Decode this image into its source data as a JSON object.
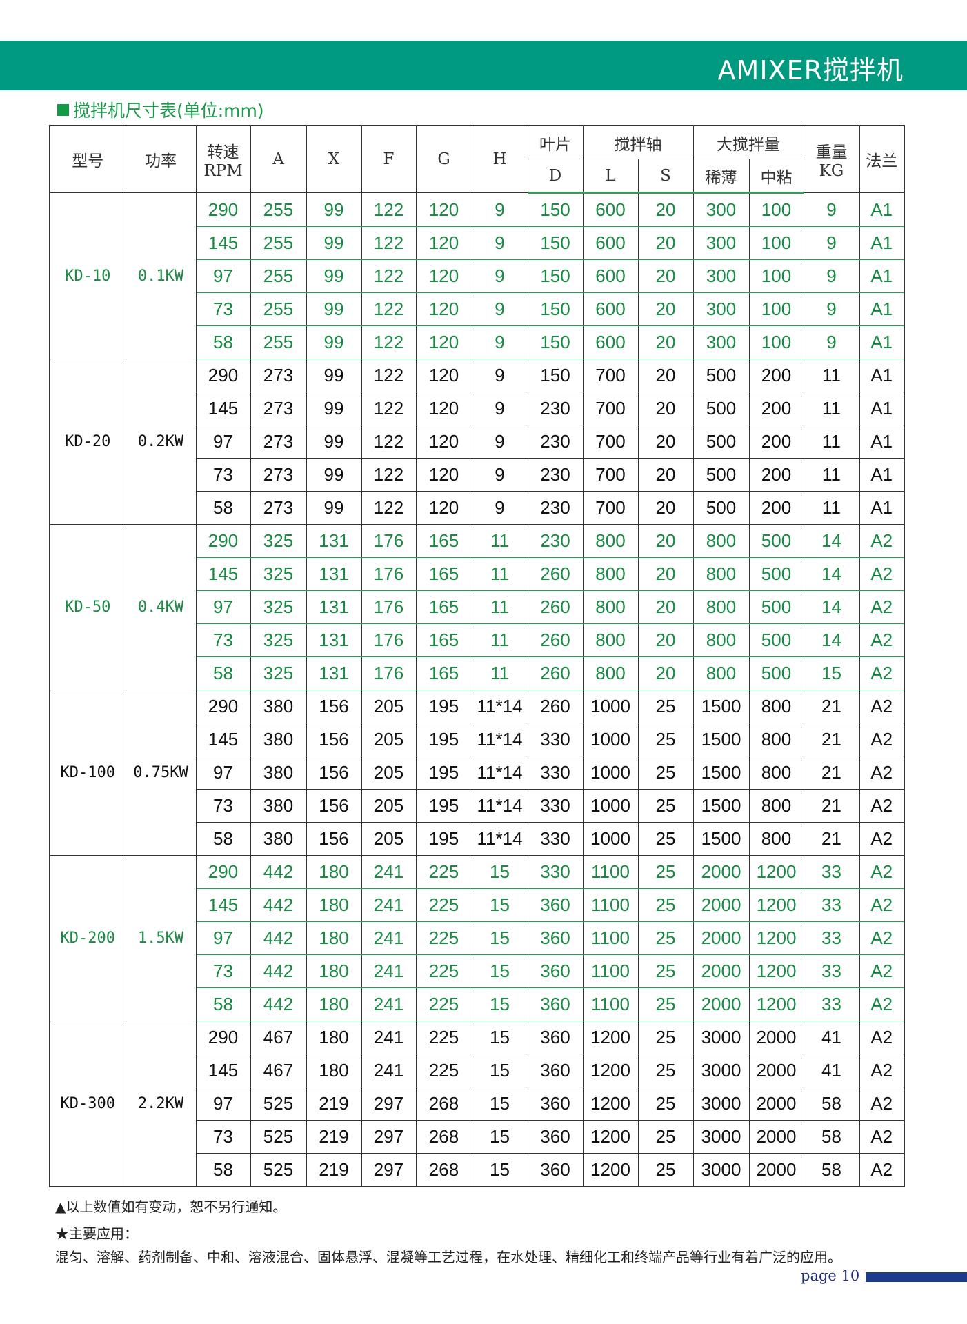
{
  "header": {
    "title": "AMIXER搅拌机",
    "band_color": "#009a80"
  },
  "subtitle": "搅拌机尺寸表(单位:mm)",
  "table": {
    "headers": {
      "model": "型号",
      "power": "功率",
      "speed": "转速",
      "speed_unit": "RPM",
      "A": "A",
      "X": "X",
      "F": "F",
      "G": "G",
      "H": "H",
      "blade": "叶片",
      "shaft": "搅拌轴",
      "capacity": "大搅拌量",
      "weight": "重量",
      "weight_unit": "KG",
      "flange": "法兰",
      "D": "D",
      "L": "L",
      "S": "S",
      "thin": "稀薄",
      "medium": "中粘"
    },
    "accent_color": "#1a8a45",
    "groups": [
      {
        "model": "KD-10",
        "power": "0.1KW",
        "green": true,
        "rows": [
          [
            "290",
            "255",
            "99",
            "122",
            "120",
            "9",
            "150",
            "600",
            "20",
            "300",
            "100",
            "9",
            "A1"
          ],
          [
            "145",
            "255",
            "99",
            "122",
            "120",
            "9",
            "150",
            "600",
            "20",
            "300",
            "100",
            "9",
            "A1"
          ],
          [
            "97",
            "255",
            "99",
            "122",
            "120",
            "9",
            "150",
            "600",
            "20",
            "300",
            "100",
            "9",
            "A1"
          ],
          [
            "73",
            "255",
            "99",
            "122",
            "120",
            "9",
            "150",
            "600",
            "20",
            "300",
            "100",
            "9",
            "A1"
          ],
          [
            "58",
            "255",
            "99",
            "122",
            "120",
            "9",
            "150",
            "600",
            "20",
            "300",
            "100",
            "9",
            "A1"
          ]
        ]
      },
      {
        "model": "KD-20",
        "power": "0.2KW",
        "green": false,
        "rows": [
          [
            "290",
            "273",
            "99",
            "122",
            "120",
            "9",
            "150",
            "700",
            "20",
            "500",
            "200",
            "11",
            "A1"
          ],
          [
            "145",
            "273",
            "99",
            "122",
            "120",
            "9",
            "230",
            "700",
            "20",
            "500",
            "200",
            "11",
            "A1"
          ],
          [
            "97",
            "273",
            "99",
            "122",
            "120",
            "9",
            "230",
            "700",
            "20",
            "500",
            "200",
            "11",
            "A1"
          ],
          [
            "73",
            "273",
            "99",
            "122",
            "120",
            "9",
            "230",
            "700",
            "20",
            "500",
            "200",
            "11",
            "A1"
          ],
          [
            "58",
            "273",
            "99",
            "122",
            "120",
            "9",
            "230",
            "700",
            "20",
            "500",
            "200",
            "11",
            "A1"
          ]
        ]
      },
      {
        "model": "KD-50",
        "power": "0.4KW",
        "green": true,
        "rows": [
          [
            "290",
            "325",
            "131",
            "176",
            "165",
            "11",
            "230",
            "800",
            "20",
            "800",
            "500",
            "14",
            "A2"
          ],
          [
            "145",
            "325",
            "131",
            "176",
            "165",
            "11",
            "260",
            "800",
            "20",
            "800",
            "500",
            "14",
            "A2"
          ],
          [
            "97",
            "325",
            "131",
            "176",
            "165",
            "11",
            "260",
            "800",
            "20",
            "800",
            "500",
            "14",
            "A2"
          ],
          [
            "73",
            "325",
            "131",
            "176",
            "165",
            "11",
            "260",
            "800",
            "20",
            "800",
            "500",
            "14",
            "A2"
          ],
          [
            "58",
            "325",
            "131",
            "176",
            "165",
            "11",
            "260",
            "800",
            "20",
            "800",
            "500",
            "15",
            "A2"
          ]
        ]
      },
      {
        "model": "KD-100",
        "power": "0.75KW",
        "green": false,
        "rows": [
          [
            "290",
            "380",
            "156",
            "205",
            "195",
            "11*14",
            "260",
            "1000",
            "25",
            "1500",
            "800",
            "21",
            "A2"
          ],
          [
            "145",
            "380",
            "156",
            "205",
            "195",
            "11*14",
            "330",
            "1000",
            "25",
            "1500",
            "800",
            "21",
            "A2"
          ],
          [
            "97",
            "380",
            "156",
            "205",
            "195",
            "11*14",
            "330",
            "1000",
            "25",
            "1500",
            "800",
            "21",
            "A2"
          ],
          [
            "73",
            "380",
            "156",
            "205",
            "195",
            "11*14",
            "330",
            "1000",
            "25",
            "1500",
            "800",
            "21",
            "A2"
          ],
          [
            "58",
            "380",
            "156",
            "205",
            "195",
            "11*14",
            "330",
            "1000",
            "25",
            "1500",
            "800",
            "21",
            "A2"
          ]
        ]
      },
      {
        "model": "KD-200",
        "power": "1.5KW",
        "green": true,
        "rows": [
          [
            "290",
            "442",
            "180",
            "241",
            "225",
            "15",
            "330",
            "1100",
            "25",
            "2000",
            "1200",
            "33",
            "A2"
          ],
          [
            "145",
            "442",
            "180",
            "241",
            "225",
            "15",
            "360",
            "1100",
            "25",
            "2000",
            "1200",
            "33",
            "A2"
          ],
          [
            "97",
            "442",
            "180",
            "241",
            "225",
            "15",
            "360",
            "1100",
            "25",
            "2000",
            "1200",
            "33",
            "A2"
          ],
          [
            "73",
            "442",
            "180",
            "241",
            "225",
            "15",
            "360",
            "1100",
            "25",
            "2000",
            "1200",
            "33",
            "A2"
          ],
          [
            "58",
            "442",
            "180",
            "241",
            "225",
            "15",
            "360",
            "1100",
            "25",
            "2000",
            "1200",
            "33",
            "A2"
          ]
        ]
      },
      {
        "model": "KD-300",
        "power": "2.2KW",
        "green": false,
        "rows": [
          [
            "290",
            "467",
            "180",
            "241",
            "225",
            "15",
            "360",
            "1200",
            "25",
            "3000",
            "2000",
            "41",
            "A2"
          ],
          [
            "145",
            "467",
            "180",
            "241",
            "225",
            "15",
            "360",
            "1200",
            "25",
            "3000",
            "2000",
            "41",
            "A2"
          ],
          [
            "97",
            "525",
            "219",
            "297",
            "268",
            "15",
            "360",
            "1200",
            "25",
            "3000",
            "2000",
            "58",
            "A2"
          ],
          [
            "73",
            "525",
            "219",
            "297",
            "268",
            "15",
            "360",
            "1200",
            "25",
            "3000",
            "2000",
            "58",
            "A2"
          ],
          [
            "58",
            "525",
            "219",
            "297",
            "268",
            "15",
            "360",
            "1200",
            "25",
            "3000",
            "2000",
            "58",
            "A2"
          ]
        ]
      }
    ]
  },
  "notes": {
    "notice": "▲以上数值如有变动，恕不另行通知。",
    "applications_title": "★主要应用：",
    "applications": "混匀、溶解、药剂制备、中和、溶液混合、固体悬浮、混凝等工艺过程，在水处理、精细化工和终端产品等行业有着广泛的应用。"
  },
  "footer": {
    "page": "page 10",
    "bar_color": "#1e3a8a"
  }
}
